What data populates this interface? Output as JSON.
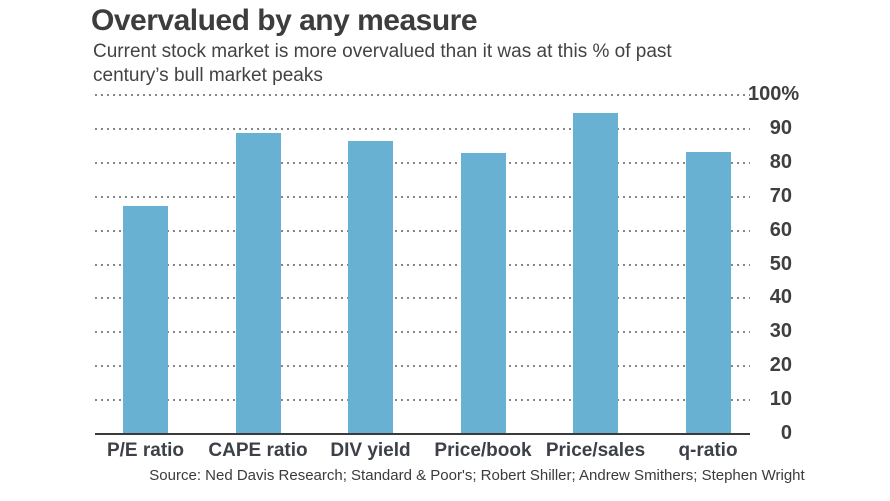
{
  "chart": {
    "title": "Overvalued by any measure",
    "subtitle_lines": [
      "Current stock market is more overvalued than it was at this % of past",
      "century’s bull market peaks"
    ],
    "source": "Source: Ned Davis Research; Standard & Poor's; Robert Shiller; Andrew Smithers; Stephen Wright"
  },
  "chart_data": {
    "type": "bar",
    "title": "Overvalued by any measure",
    "subtitle": "Current stock market is more overvalued than it was at this % of past century’s bull market peaks",
    "categories": [
      "P/E ratio",
      "CAPE ratio",
      "DIV yield",
      "Price/book",
      "Price/sales",
      "q-ratio"
    ],
    "values": [
      67,
      88.5,
      86,
      82.5,
      94.5,
      83
    ],
    "xlabel": "",
    "ylabel": "% of past bull market peaks",
    "ylim": [
      0,
      100
    ],
    "ytick_values": [
      100,
      90,
      80,
      70,
      60,
      50,
      40,
      30,
      20,
      10,
      0
    ],
    "ytick_labels": [
      "100%",
      "90",
      "80",
      "70",
      "60",
      "50",
      "40",
      "30",
      "20",
      "10",
      "0"
    ],
    "grid": "horizontal-dotted",
    "legend_position": "none",
    "bar_color": "#69b1d3",
    "axis_color": "#3b3b3b",
    "grid_color": "#878787",
    "text_color": "#3d3d3d",
    "source": "Source: Ned Davis Research; Standard & Poor's; Robert Shiller; Andrew Smithers; Stephen Wright"
  }
}
